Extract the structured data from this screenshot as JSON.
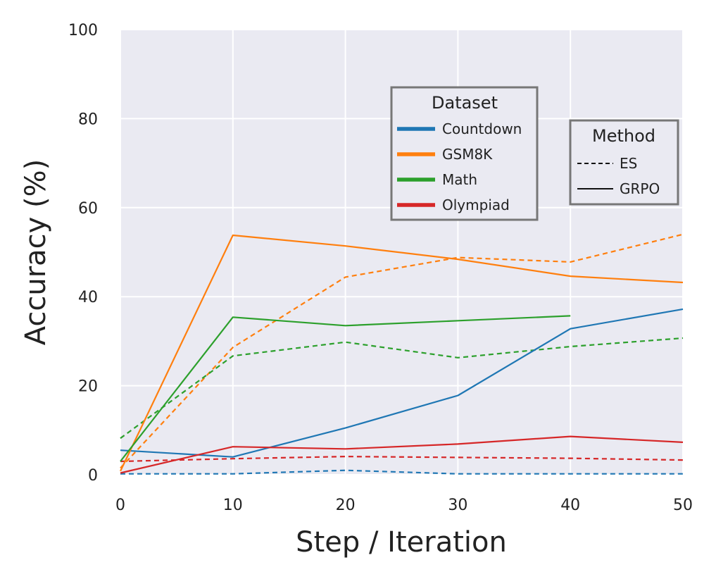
{
  "chart_data": {
    "type": "line",
    "title": "",
    "xlabel": "Step / Iteration",
    "ylabel": "Accuracy (%)",
    "xlim": [
      0,
      50
    ],
    "ylim": [
      0,
      100
    ],
    "xticks": [
      0,
      10,
      20,
      30,
      40,
      50
    ],
    "yticks": [
      0,
      20,
      40,
      60,
      80,
      100
    ],
    "x": [
      0,
      10,
      20,
      30,
      40,
      50
    ],
    "grid": true,
    "background": "#eaeaf2",
    "datasets": [
      {
        "name": "Countdown",
        "color": "#1f77b4"
      },
      {
        "name": "GSM8K",
        "color": "#ff7f0e"
      },
      {
        "name": "Math",
        "color": "#2ca02c"
      },
      {
        "name": "Olympiad",
        "color": "#d62728"
      }
    ],
    "methods": [
      {
        "name": "ES",
        "style": "dashed"
      },
      {
        "name": "GRPO",
        "style": "solid"
      }
    ],
    "series": [
      {
        "dataset": "Countdown",
        "method": "GRPO",
        "x": [
          0,
          10,
          20,
          30,
          40,
          50
        ],
        "values": [
          5.5,
          4.0,
          10.5,
          17.8,
          32.8,
          37.2
        ]
      },
      {
        "dataset": "Countdown",
        "method": "ES",
        "x": [
          0,
          10,
          20,
          30,
          40,
          50
        ],
        "values": [
          0.2,
          0.2,
          1.0,
          0.2,
          0.2,
          0.2
        ]
      },
      {
        "dataset": "GSM8K",
        "method": "GRPO",
        "x": [
          0,
          10,
          20,
          30,
          40,
          50
        ],
        "values": [
          0.8,
          53.8,
          51.4,
          48.4,
          44.6,
          43.2
        ]
      },
      {
        "dataset": "GSM8K",
        "method": "ES",
        "x": [
          0,
          10,
          20,
          30,
          40,
          50
        ],
        "values": [
          1.5,
          28.6,
          44.4,
          48.8,
          47.8,
          54.0
        ]
      },
      {
        "dataset": "Math",
        "method": "GRPO",
        "x": [
          0,
          10,
          20,
          30,
          40
        ],
        "values": [
          3.0,
          35.4,
          33.5,
          34.6,
          35.7
        ]
      },
      {
        "dataset": "Math",
        "method": "ES",
        "x": [
          0,
          10,
          20,
          30,
          40,
          50
        ],
        "values": [
          8.2,
          26.7,
          29.8,
          26.3,
          28.8,
          30.7
        ]
      },
      {
        "dataset": "Olympiad",
        "method": "GRPO",
        "x": [
          0,
          10,
          20,
          30,
          40,
          50
        ],
        "values": [
          0.4,
          6.3,
          5.8,
          6.9,
          8.6,
          7.3
        ]
      },
      {
        "dataset": "Olympiad",
        "method": "ES",
        "x": [
          0,
          10,
          20,
          30,
          40,
          50
        ],
        "values": [
          3.0,
          3.6,
          4.1,
          3.9,
          3.7,
          3.3
        ]
      }
    ],
    "legends": [
      {
        "title": "Dataset",
        "placement": "upper-center"
      },
      {
        "title": "Method",
        "placement": "upper-right"
      }
    ]
  }
}
